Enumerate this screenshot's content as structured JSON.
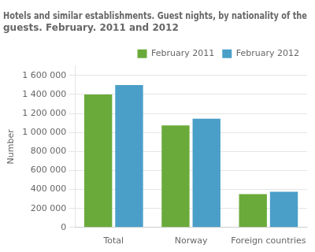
{
  "chart_data": {
    "type": "bar",
    "title": "Hotels and similar establishments. Guest nights, by nationality of the\nguests. February. 2011 and 2012",
    "ylabel": "Number",
    "categories": [
      "Total",
      "Norway",
      "Foreign countries"
    ],
    "series": [
      {
        "name": "February 2011",
        "color": "#6aaa3a",
        "values": [
          1400000,
          1075000,
          350000
        ]
      },
      {
        "name": "February 2012",
        "color": "#4a9fc8",
        "values": [
          1500000,
          1145000,
          375000
        ]
      }
    ],
    "ylim": [
      0,
      1700000
    ],
    "yticks": [
      0,
      {
        "value": 200000,
        "label": "200 000"
      },
      {
        "value": 400000,
        "label": "400 000"
      },
      {
        "value": 600000,
        "label": "600 000"
      },
      {
        "value": 800000,
        "label": "800 000"
      },
      {
        "value": 1000000,
        "label": "1 000 000"
      },
      {
        "value": 1200000,
        "label": "1 200 000"
      },
      {
        "value": 1400000,
        "label": "1 400 000"
      },
      {
        "value": 1600000,
        "label": "1 600 000"
      }
    ],
    "grid": true,
    "legend": "upper right"
  }
}
